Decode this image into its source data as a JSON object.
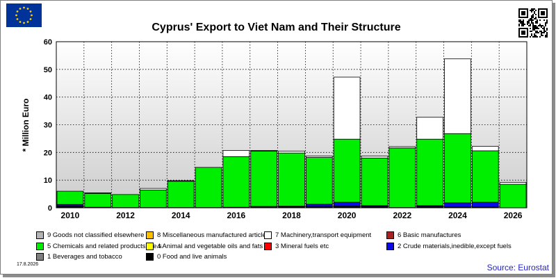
{
  "header": {
    "flag_icon": "eu-flag-icon",
    "qr_icon": "qr-code-icon"
  },
  "footer": {
    "date": "17.8.2026",
    "source": "Source: Eurostat"
  },
  "colors": {
    "food": "#000000",
    "beverages": "#7f7f7f",
    "crude": "#0a0ae6",
    "fuels": "#ff0000",
    "oils": "#ffff00",
    "chemicals": "#00ee00",
    "basic": "#aa2020",
    "machinery": "#ffffff",
    "misc": "#ffc000",
    "unclassified": "#b4b4b4",
    "plot_bg_top": "#ffffff",
    "plot_bg_bottom": "#cccccc"
  },
  "chart_data": {
    "type": "bar",
    "stacked": true,
    "title": "Cyprus' Export to Viet Nam and Their Structure",
    "ylabel": "* Million Euro",
    "xlabel": "",
    "ylim": [
      0,
      60
    ],
    "yticks": [
      0,
      10,
      20,
      30,
      40,
      50,
      60
    ],
    "grid": true,
    "legend_position": "bottom",
    "categories": [
      "2010",
      "2011",
      "2012",
      "2013",
      "2014",
      "2015",
      "2016",
      "2017",
      "2018",
      "2019",
      "2020",
      "2021",
      "2022",
      "2023",
      "2024",
      "2025",
      "2026"
    ],
    "xtick_labels": [
      "2010",
      "",
      "2012",
      "",
      "2014",
      "",
      "2016",
      "",
      "2018",
      "",
      "2020",
      "",
      "2022",
      "",
      "2024",
      "",
      "2026"
    ],
    "series": [
      {
        "name": "0 Food and live animals",
        "key": "food",
        "values": [
          0.6,
          0.2,
          0.1,
          0.1,
          0.1,
          0.1,
          0.2,
          0.5,
          0.6,
          0.5,
          0.6,
          0.5,
          0.1,
          0.5,
          0.4,
          0.4,
          0.0
        ]
      },
      {
        "name": "1 Beverages and tobacco",
        "key": "beverages",
        "values": [
          0,
          0,
          0,
          0,
          0,
          0,
          0,
          0,
          0,
          0,
          0,
          0,
          0,
          0,
          0,
          0,
          0
        ]
      },
      {
        "name": "2 Crude materials,inedible,except fuels",
        "key": "crude",
        "values": [
          0.6,
          0,
          0,
          0,
          0,
          0,
          0,
          0,
          0,
          0.8,
          1.4,
          0.3,
          0,
          0.3,
          1.4,
          1.6,
          0
        ]
      },
      {
        "name": "3 Mineral fuels etc",
        "key": "fuels",
        "values": [
          0,
          0,
          0,
          0,
          0,
          0,
          0,
          0,
          0,
          0,
          0,
          0,
          0,
          0,
          0,
          0,
          0
        ]
      },
      {
        "name": "4 Animal and vegetable oils and fats",
        "key": "oils",
        "values": [
          0,
          0,
          0,
          0,
          0,
          0,
          0,
          0,
          0,
          0,
          0,
          0,
          0,
          0,
          0,
          0,
          0
        ]
      },
      {
        "name": "5 Chemicals and related products,n.e.s.",
        "key": "chemicals",
        "values": [
          4.8,
          5.0,
          4.7,
          6.3,
          9.5,
          14.5,
          18.3,
          20.0,
          19.2,
          16.9,
          22.8,
          17.2,
          21.5,
          24.0,
          25.0,
          18.6,
          8.5
        ]
      },
      {
        "name": "6 Basic manufactures",
        "key": "basic",
        "values": [
          0,
          0,
          0,
          0,
          0,
          0,
          0,
          0,
          0,
          0,
          0,
          0,
          0,
          0,
          0,
          0,
          0
        ]
      },
      {
        "name": "7 Machinery,transport equipment",
        "key": "machinery",
        "values": [
          0,
          0.2,
          0,
          0.6,
          0.2,
          0,
          2.2,
          0.2,
          0.7,
          0.5,
          22.4,
          0.7,
          0.5,
          7.9,
          27.0,
          1.6,
          0.7
        ]
      },
      {
        "name": "8 Miscellaneous manufactured articles",
        "key": "misc",
        "values": [
          0,
          0,
          0,
          0,
          0,
          0,
          0,
          0,
          0,
          0,
          0,
          0,
          0,
          0,
          0,
          0,
          0
        ]
      },
      {
        "name": "9 Goods not classified elsewhere",
        "key": "unclassified",
        "values": [
          0,
          0,
          0,
          0,
          0,
          0,
          0,
          0,
          0,
          0,
          0,
          0,
          0,
          0,
          0,
          0,
          0
        ]
      }
    ],
    "legend_rows": [
      [
        "9 Goods not classified elsewhere",
        "8 Miscellaneous manufactured articles",
        "7 Machinery,transport equipment",
        "6 Basic manufactures"
      ],
      [
        "5 Chemicals and related products,n.e.s.",
        "4 Animal and vegetable oils and fats",
        "3 Mineral fuels etc",
        "2 Crude materials,inedible,except fuels"
      ],
      [
        "1 Beverages and tobacco",
        "0 Food and live animals"
      ]
    ]
  }
}
